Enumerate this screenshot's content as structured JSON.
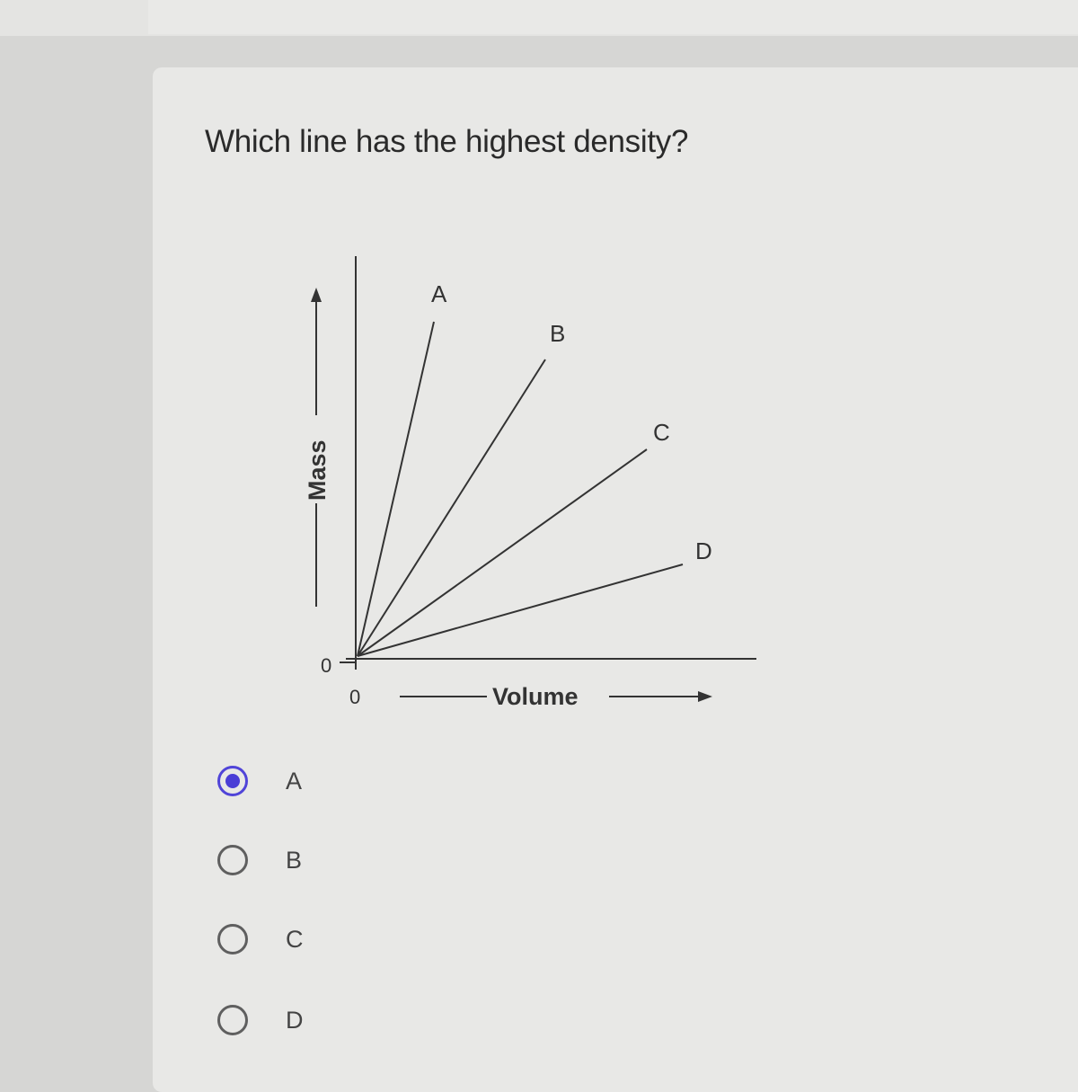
{
  "question": "Which line has the highest density?",
  "diagram": {
    "y_axis_label": "Mass",
    "x_axis_label": "Volume",
    "y_origin_label": "0",
    "x_origin_label": "0",
    "lines": [
      {
        "label": "A"
      },
      {
        "label": "B"
      },
      {
        "label": "C"
      },
      {
        "label": "D"
      }
    ]
  },
  "options": [
    {
      "label": "A",
      "selected": true
    },
    {
      "label": "B",
      "selected": false
    },
    {
      "label": "C",
      "selected": false
    },
    {
      "label": "D",
      "selected": false
    }
  ],
  "colors": {
    "accent": "#4a3ed6"
  }
}
